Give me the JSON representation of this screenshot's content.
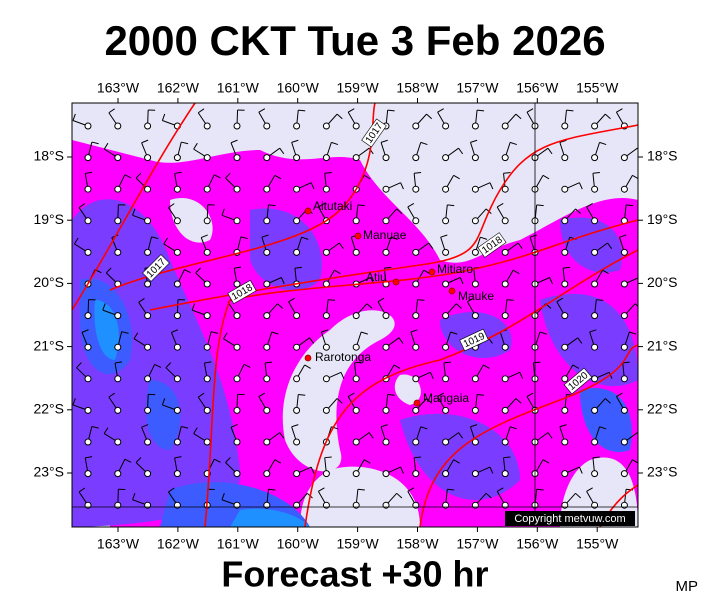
{
  "header": {
    "title": "2000 CKT Tue 3 Feb 2026"
  },
  "map": {
    "lon_labels": [
      "163°W",
      "162°W",
      "161°W",
      "160°W",
      "159°W",
      "158°W",
      "157°W",
      "156°W",
      "155°W"
    ],
    "lat_labels": [
      "18°S",
      "19°S",
      "20°S",
      "21°S",
      "22°S",
      "23°S"
    ],
    "places": [
      "Aitutaki",
      "Manuae",
      "Atiu",
      "Mitiaro",
      "Mauke",
      "Rarotonga",
      "Mangaia"
    ],
    "isobar_labels": [
      "1017",
      "1017",
      "1018",
      "1018",
      "1019",
      "1020"
    ],
    "copyright": "Copyright metvuw.com"
  },
  "footer": {
    "forecast": "Forecast +30 hr",
    "code": "MP"
  }
}
